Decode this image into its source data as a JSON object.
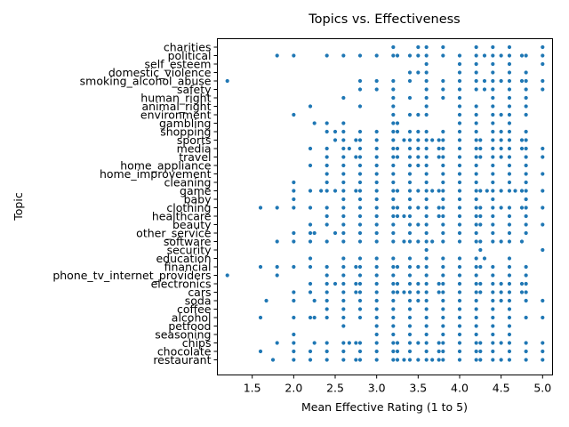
{
  "chart_data": {
    "type": "scatter",
    "title": "Topics vs. Effectiveness",
    "xlabel": "Mean Effective Rating (1 to 5)",
    "ylabel": "Topic",
    "xlim": [
      1.08,
      5.12
    ],
    "x_ticks": [
      "1.5",
      "2.0",
      "2.5",
      "3.0",
      "3.5",
      "4.0",
      "4.5",
      "5.0"
    ],
    "grid": false,
    "legend": "none",
    "marker_color": "#1f77b4",
    "topics": [
      "restaurant",
      "chocolate",
      "chips",
      "seasoning",
      "petfood",
      "alcohol",
      "coffee",
      "soda",
      "cars",
      "electronics",
      "phone_tv_internet_providers",
      "financial",
      "education",
      "security",
      "software",
      "other_service",
      "beauty",
      "healthcare",
      "clothing",
      "baby",
      "game",
      "cleaning",
      "home_improvement",
      "home_appliance",
      "travel",
      "media",
      "sports",
      "shopping",
      "gambling",
      "environment",
      "animal_right",
      "human_right",
      "safety",
      "smoking_alcohol_abuse",
      "domestic_violence",
      "self_esteem",
      "political",
      "charities"
    ],
    "points": [
      {
        "topic": "charities",
        "x": [
          3.2,
          3.5,
          3.6,
          3.8,
          4.2,
          4.4,
          4.6,
          5.0
        ]
      },
      {
        "topic": "political",
        "x": [
          1.8,
          2.0,
          2.4,
          2.6,
          2.8,
          3.0,
          3.2,
          3.25,
          3.4,
          3.5,
          3.6,
          3.8,
          4.0,
          4.2,
          4.3,
          4.4,
          4.5,
          4.6,
          4.75,
          4.8,
          5.0
        ]
      },
      {
        "topic": "self_esteem",
        "x": [
          3.6,
          4.0,
          4.2,
          4.4,
          4.6,
          5.0
        ]
      },
      {
        "topic": "domestic_violence",
        "x": [
          3.4,
          3.5,
          3.6,
          4.0,
          4.2,
          4.4,
          4.6,
          4.8
        ]
      },
      {
        "topic": "smoking_alcohol_abuse",
        "x": [
          1.2,
          2.8,
          3.0,
          3.2,
          3.4,
          3.6,
          3.8,
          4.0,
          4.2,
          4.3,
          4.4,
          4.5,
          4.6,
          4.75,
          4.8,
          5.0
        ]
      },
      {
        "topic": "safety",
        "x": [
          2.8,
          3.0,
          3.2,
          3.6,
          3.8,
          4.0,
          4.2,
          4.3,
          4.4,
          4.6,
          4.8,
          5.0
        ]
      },
      {
        "topic": "human_right",
        "x": [
          2.6,
          3.2,
          3.4,
          3.6,
          3.8,
          4.0,
          4.4,
          4.6,
          4.8
        ]
      },
      {
        "topic": "animal_right",
        "x": [
          2.2,
          2.8,
          3.2,
          3.6,
          4.0,
          4.2,
          4.4,
          4.6,
          4.8
        ]
      },
      {
        "topic": "environment",
        "x": [
          2.0,
          3.2,
          3.4,
          3.5,
          3.6,
          4.0,
          4.2,
          4.4,
          4.5,
          4.6,
          4.8
        ]
      },
      {
        "topic": "gambling",
        "x": [
          2.25,
          2.4,
          2.6,
          3.2,
          3.25,
          4.0,
          4.2,
          4.4,
          4.6
        ]
      },
      {
        "topic": "shopping",
        "x": [
          2.4,
          2.5,
          2.6,
          2.8,
          3.0,
          3.2,
          3.25,
          3.4,
          3.5,
          3.6,
          3.8,
          4.0,
          4.2,
          4.4,
          4.5,
          4.6,
          4.8
        ]
      },
      {
        "topic": "sports",
        "x": [
          2.5,
          2.6,
          2.75,
          2.8,
          3.0,
          3.2,
          3.33,
          3.4,
          3.5,
          3.6,
          3.67,
          3.75,
          3.8,
          4.0,
          4.2,
          4.25,
          4.4,
          4.5,
          4.6,
          4.75,
          4.8
        ]
      },
      {
        "topic": "media",
        "x": [
          2.2,
          2.4,
          2.6,
          2.67,
          2.8,
          3.0,
          3.2,
          3.25,
          3.4,
          3.5,
          3.6,
          3.75,
          3.8,
          4.0,
          4.2,
          4.25,
          4.4,
          4.5,
          4.6,
          4.75,
          4.8,
          5.0
        ]
      },
      {
        "topic": "travel",
        "x": [
          2.4,
          2.6,
          2.75,
          2.8,
          3.0,
          3.2,
          3.25,
          3.4,
          3.5,
          3.6,
          3.75,
          3.8,
          4.0,
          4.2,
          4.25,
          4.4,
          4.5,
          4.6,
          4.8,
          5.0
        ]
      },
      {
        "topic": "home_appliance",
        "x": [
          2.2,
          2.4,
          2.6,
          2.8,
          3.0,
          3.2,
          3.4,
          3.5,
          3.6,
          3.8,
          4.0,
          4.2,
          4.4,
          4.6,
          4.8
        ]
      },
      {
        "topic": "home_improvement",
        "x": [
          2.4,
          2.6,
          2.8,
          3.0,
          3.2,
          3.4,
          3.6,
          3.8,
          4.0,
          4.2,
          4.4,
          4.6,
          4.8,
          5.0
        ]
      },
      {
        "topic": "cleaning",
        "x": [
          2.0,
          2.4,
          2.6,
          2.8,
          3.0,
          3.2,
          3.4,
          3.6,
          3.8,
          4.0,
          4.2,
          4.4,
          4.6,
          4.8
        ]
      },
      {
        "topic": "game",
        "x": [
          2.0,
          2.2,
          2.33,
          2.4,
          2.5,
          2.6,
          2.75,
          2.8,
          3.0,
          3.2,
          3.25,
          3.4,
          3.5,
          3.6,
          3.67,
          3.75,
          3.8,
          4.0,
          4.2,
          4.25,
          4.33,
          4.4,
          4.5,
          4.6,
          4.67,
          4.75,
          4.8,
          5.0
        ]
      },
      {
        "topic": "baby",
        "x": [
          2.0,
          2.6,
          2.8,
          3.0,
          3.2,
          3.4,
          3.6,
          3.8,
          4.0,
          4.2,
          4.4,
          4.8
        ]
      },
      {
        "topic": "clothing",
        "x": [
          1.6,
          1.8,
          2.0,
          2.2,
          2.4,
          2.6,
          2.8,
          3.0,
          3.2,
          3.25,
          3.4,
          3.5,
          3.6,
          3.75,
          3.8,
          4.0,
          4.2,
          4.25,
          4.4,
          4.5,
          4.6,
          4.75,
          4.8,
          5.0
        ]
      },
      {
        "topic": "healthcare",
        "x": [
          2.4,
          2.6,
          2.8,
          3.0,
          3.2,
          3.25,
          3.33,
          3.4,
          3.6,
          3.75,
          3.8,
          4.0,
          4.2,
          4.25,
          4.4,
          4.6,
          4.8
        ]
      },
      {
        "topic": "beauty",
        "x": [
          2.2,
          2.4,
          2.6,
          2.8,
          3.0,
          3.2,
          3.4,
          3.5,
          3.6,
          3.8,
          4.0,
          4.2,
          4.25,
          4.4,
          4.6,
          4.8,
          5.0
        ]
      },
      {
        "topic": "other_service",
        "x": [
          2.0,
          2.2,
          2.25,
          2.5,
          2.6,
          2.8,
          3.0,
          3.2,
          3.4,
          3.6,
          3.8,
          4.0,
          4.2,
          4.4,
          4.6,
          4.8
        ]
      },
      {
        "topic": "software",
        "x": [
          1.8,
          2.0,
          2.2,
          2.4,
          2.6,
          2.8,
          3.0,
          3.2,
          3.33,
          3.4,
          3.5,
          3.6,
          3.67,
          3.8,
          4.0,
          4.2,
          4.25,
          4.4,
          4.5,
          4.6,
          4.75
        ]
      },
      {
        "topic": "security",
        "x": [
          3.6,
          4.25,
          5.0
        ]
      },
      {
        "topic": "education",
        "x": [
          2.2,
          2.6,
          2.8,
          3.0,
          3.2,
          3.4,
          3.6,
          3.8,
          4.0,
          4.2,
          4.3,
          4.6
        ]
      },
      {
        "topic": "financial",
        "x": [
          1.6,
          1.8,
          2.0,
          2.2,
          2.4,
          2.6,
          2.75,
          2.8,
          3.0,
          3.2,
          3.25,
          3.4,
          3.5,
          3.6,
          3.8,
          4.0,
          4.2,
          4.25,
          4.4,
          4.6,
          4.8
        ]
      },
      {
        "topic": "phone_tv_internet_providers",
        "x": [
          1.2,
          1.8,
          2.4,
          2.6,
          2.8,
          3.0,
          3.2,
          3.4,
          3.6,
          3.8,
          4.0,
          4.2,
          4.4,
          4.6,
          4.8
        ]
      },
      {
        "topic": "electronics",
        "x": [
          2.2,
          2.4,
          2.5,
          2.6,
          2.75,
          2.8,
          3.0,
          3.2,
          3.25,
          3.4,
          3.5,
          3.6,
          3.75,
          3.8,
          4.0,
          4.2,
          4.25,
          4.4,
          4.5,
          4.6,
          4.75,
          4.8
        ]
      },
      {
        "topic": "cars",
        "x": [
          2.0,
          2.2,
          2.4,
          2.6,
          2.75,
          2.8,
          3.0,
          3.2,
          3.25,
          3.33,
          3.4,
          3.5,
          3.6,
          3.75,
          3.8,
          4.0,
          4.2,
          4.25,
          4.4,
          4.5,
          4.6,
          4.75,
          4.8
        ]
      },
      {
        "topic": "soda",
        "x": [
          1.67,
          2.0,
          2.25,
          2.4,
          2.6,
          2.8,
          3.0,
          3.2,
          3.4,
          3.5,
          3.6,
          3.8,
          4.0,
          4.2,
          4.4,
          4.5,
          4.6,
          4.8,
          5.0
        ]
      },
      {
        "topic": "coffee",
        "x": [
          2.4,
          2.6,
          2.8,
          3.0,
          3.2,
          3.4,
          3.6,
          3.8,
          4.0,
          4.2,
          4.4,
          4.6
        ]
      },
      {
        "topic": "alcohol",
        "x": [
          1.6,
          2.0,
          2.2,
          2.25,
          2.4,
          2.6,
          2.8,
          3.0,
          3.2,
          3.4,
          3.6,
          3.8,
          4.0,
          4.2,
          4.4,
          4.6,
          4.8,
          5.0
        ]
      },
      {
        "topic": "petfood",
        "x": [
          2.6,
          3.0,
          3.2,
          3.4,
          3.6,
          3.8,
          4.0,
          4.2,
          4.4,
          4.6
        ]
      },
      {
        "topic": "seasoning",
        "x": [
          2.0,
          3.0,
          3.2,
          3.4,
          3.6,
          3.8,
          4.0,
          4.2,
          4.4,
          4.6
        ]
      },
      {
        "topic": "chips",
        "x": [
          1.8,
          2.0,
          2.25,
          2.4,
          2.6,
          2.67,
          2.75,
          2.8,
          3.0,
          3.2,
          3.25,
          3.4,
          3.5,
          3.6,
          3.75,
          3.8,
          4.0,
          4.2,
          4.25,
          4.4,
          4.5,
          4.6,
          4.8,
          5.0
        ]
      },
      {
        "topic": "chocolate",
        "x": [
          1.6,
          2.0,
          2.2,
          2.4,
          2.6,
          2.8,
          3.0,
          3.2,
          3.25,
          3.4,
          3.6,
          3.75,
          3.8,
          4.0,
          4.2,
          4.25,
          4.4,
          4.6,
          4.8,
          5.0
        ]
      },
      {
        "topic": "restaurant",
        "x": [
          1.75,
          2.0,
          2.2,
          2.4,
          2.6,
          2.75,
          2.8,
          3.0,
          3.2,
          3.25,
          3.33,
          3.4,
          3.5,
          3.6,
          3.67,
          3.75,
          3.8,
          4.0,
          4.2,
          4.25,
          4.4,
          4.5,
          4.6,
          4.8,
          5.0
        ]
      }
    ]
  }
}
